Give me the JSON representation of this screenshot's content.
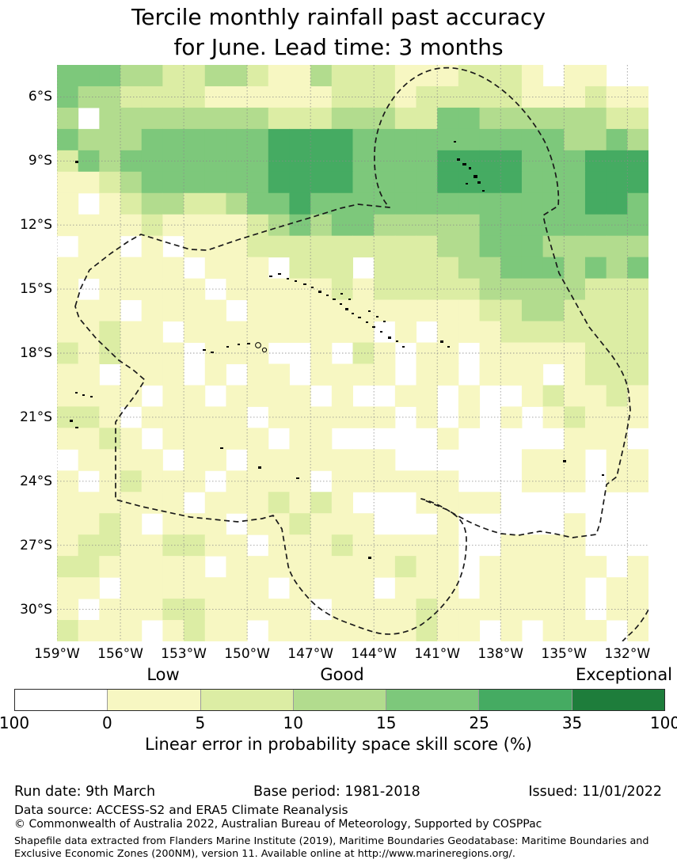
{
  "title": {
    "line1": "Tercile monthly rainfall past accuracy",
    "line2": "for June. Lead time: 3 months"
  },
  "footer": {
    "run_date": "Run date: 9th March",
    "base_period": "Base period: 1981-2018",
    "issued": "Issued: 11/01/2022",
    "data_source": "Data source: ACCESS-S2 and ERA5 Climate Reanalysis",
    "copyright": "© Commonwealth of Australia 2022, Australian Bureau of Meteorology, Supported by COSPPac",
    "shapefile_note": "Shapefile data extracted from Flanders Marine Institute (2019), Maritime Boundaries Geodatabase: Maritime Boundaries and Exclusive Economic Zones (200NM), version 11. Available online at http://www.marineregions.org/."
  },
  "chart_data": {
    "type": "heatmap",
    "title": "Tercile monthly rainfall past accuracy for June. Lead time: 3 months",
    "x_tick_labels": [
      "159°W",
      "156°W",
      "153°W",
      "150°W",
      "147°W",
      "144°W",
      "141°W",
      "138°W",
      "135°W",
      "132°W"
    ],
    "y_tick_labels": [
      "6°S",
      "9°S",
      "12°S",
      "15°S",
      "18°S",
      "21°S",
      "24°S",
      "27°S",
      "30°S"
    ],
    "xlim_deg_west": [
      159,
      131
    ],
    "ylim_deg_south": [
      4.5,
      31.5
    ],
    "grid_on": true,
    "cell_size_deg": 1,
    "value_bins_percent": [
      [
        0,
        5
      ],
      [
        5,
        10
      ],
      [
        10,
        15
      ],
      [
        15,
        25
      ],
      [
        25,
        35
      ],
      [
        35,
        100
      ]
    ],
    "bin_colors": {
      "1": "#f7f7c2",
      "2": "#dceda4",
      "3": "#b2dc8e",
      "4": "#7dc87b",
      "5": "#45ab62",
      "6": "#1e7d3b"
    },
    "grid_legend": "each row string = 28 one-degree cells from 159W to 131W; '.'=no skill (blank/<=0), digits 1-5 = skill-score bin index",
    "grid_rows": [
      "44433223321132221112221.11..",
      "4332222111111222122222111211",
      "3.33333333222333224433333322",
      "4333444444555544444444443343",
      "2434444444555544445555444555",
      "1123444444555544445555444555",
      "1.12332234454444444444444554",
      "1111211112343443333344444444",
      ".11.1.1112222222223344433333",
      "111111.111.222.2222334443434",
      "1.11111.11111212222233333222",
      "111.1111.1111111111122332222",
      "11211.111111111.1.1112222222",
      "212111.111..1.21.11.11111222",
      "11.111.1.11.1111.11.111.1222",
      "1111.11.1111.1..11.1..121121",
      "221.11111.111111.1.1.1.12111",
      "1121.11111.11.....1.....111.",
      ".1111.11.1111111......111.11",
      "1.12111.1111.111111...111.11",
      "111111.1112121...1111.......",
      "1121.111.112111...1.....1...",
      "122112211.111211111..1111...",
      "2211111.11111111211.111111.1",
      "11.1111111.1111.111.11111.11",
      "1.1112211111.111121111111.11",
      "2111.1211.1111111211.1.111.1"
    ],
    "colorbar": {
      "top_labels": [
        "Low",
        "Good",
        "Exceptional"
      ],
      "tick_labels": [
        "100",
        "0",
        "5",
        "10",
        "15",
        "25",
        "35",
        "100"
      ],
      "segment_colors": [
        "#ffffff",
        "#f7f7c2",
        "#dceda4",
        "#b2dc8e",
        "#7dc87b",
        "#45ab62",
        "#1e7d3b"
      ],
      "xlabel": "Linear error in probability space skill score (%)"
    },
    "map_overlays": {
      "boundary_style": "dashed black",
      "boundary_name": "Exclusive Economic Zone (200NM) maritime boundaries",
      "island_marks": "small black island outlines (Marquesas, Tuamotu, Society, Austral, Gambier, Cook groups)"
    }
  }
}
